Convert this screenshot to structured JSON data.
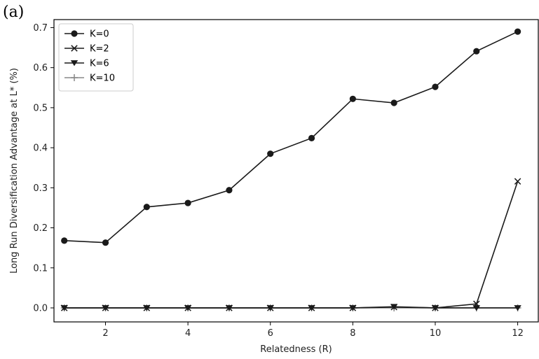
{
  "chart_data": {
    "type": "line",
    "panel_label": "(a)",
    "title": "",
    "xlabel": "Relatedness (R)",
    "ylabel": "Long Run Diversification Advantage at L* (%)",
    "xlim": [
      0.75,
      12.5
    ],
    "ylim": [
      -0.035,
      0.72
    ],
    "xticks": [
      2,
      4,
      6,
      8,
      10,
      12
    ],
    "yticks": [
      0.0,
      0.1,
      0.2,
      0.3,
      0.4,
      0.5,
      0.6,
      0.7
    ],
    "ytick_labels": [
      "0.0",
      "0.1",
      "0.2",
      "0.3",
      "0.4",
      "0.5",
      "0.6",
      "0.7"
    ],
    "grid": false,
    "legend_position": "top-left",
    "x": [
      1,
      2,
      3,
      4,
      5,
      6,
      7,
      8,
      9,
      10,
      11,
      12
    ],
    "series": [
      {
        "name": "K=0",
        "marker": "circle",
        "color": "#1a1a1a",
        "values": [
          0.168,
          0.163,
          0.252,
          0.262,
          0.294,
          0.385,
          0.424,
          0.522,
          0.512,
          0.552,
          0.641,
          0.69
        ]
      },
      {
        "name": "K=2",
        "marker": "x",
        "color": "#1a1a1a",
        "values": [
          0.0,
          0.0,
          0.0,
          0.0,
          0.0,
          0.0,
          0.0,
          0.0,
          0.002,
          0.0,
          0.01,
          0.316
        ]
      },
      {
        "name": "K=6",
        "marker": "triangle-down",
        "color": "#1a1a1a",
        "values": [
          0.0,
          0.0,
          0.0,
          0.0,
          0.0,
          0.0,
          0.0,
          0.0,
          0.003,
          0.0,
          0.0,
          0.0
        ]
      },
      {
        "name": "K=10",
        "marker": "plus",
        "color": "#888888",
        "values": [
          0.0,
          0.0,
          0.0,
          0.0,
          0.0,
          0.0,
          0.0,
          0.0,
          0.0,
          0.0,
          0.0,
          0.0
        ]
      }
    ]
  }
}
